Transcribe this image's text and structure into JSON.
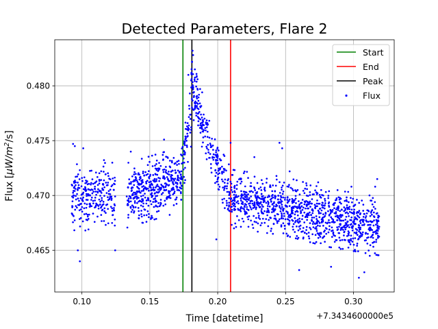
{
  "chart_data": {
    "type": "scatter",
    "title": "Detected Parameters, Flare 2",
    "xlabel": "Time [datetime]",
    "ylabel": {
      "prefix": "Flux [",
      "mu": "μ",
      "unit": "W/m",
      "sup": "2",
      "suffix": "/s]"
    },
    "x_offset_label": "+7.3434600000e5",
    "xlim": [
      0.08,
      0.33
    ],
    "ylim": [
      0.4612,
      0.4842
    ],
    "xticks": [
      0.1,
      0.15,
      0.2,
      0.25,
      0.3
    ],
    "xtick_labels": [
      "0.10",
      "0.15",
      "0.20",
      "0.25",
      "0.30"
    ],
    "yticks": [
      0.465,
      0.47,
      0.475,
      0.48
    ],
    "ytick_labels": [
      "0.465",
      "0.470",
      "0.475",
      "0.480"
    ],
    "grid": true,
    "legend_position": "top-right",
    "vertical_lines": [
      {
        "name": "Start",
        "x": 0.1744,
        "color": "#008000"
      },
      {
        "name": "End",
        "x": 0.2095,
        "color": "#ff0000"
      },
      {
        "name": "Peak",
        "x": 0.181,
        "color": "#000000"
      }
    ],
    "series": [
      {
        "name": "Flux",
        "color": "#0000ff",
        "segments": [
          {
            "x_start": 0.0925,
            "x_end": 0.1245,
            "trend": [
              [
                0.0925,
                0.4697
              ],
              [
                0.1245,
                0.4703
              ]
            ],
            "spread": 0.0022,
            "n": 260
          },
          {
            "x_start": 0.133,
            "x_end": 0.1735,
            "trend": [
              [
                0.133,
                0.47
              ],
              [
                0.1735,
                0.4715
              ]
            ],
            "spread": 0.0021,
            "n": 430
          },
          {
            "x_start": 0.1735,
            "x_end": 0.1805,
            "trend": [
              [
                0.1735,
                0.4725
              ],
              [
                0.1805,
                0.4775
              ]
            ],
            "spread": 0.0022,
            "n": 55
          },
          {
            "x_start": 0.1805,
            "x_end": 0.21,
            "trend": [
              [
                0.1805,
                0.48
              ],
              [
                0.185,
                0.4785
              ],
              [
                0.195,
                0.474
              ],
              [
                0.203,
                0.4715
              ],
              [
                0.21,
                0.47
              ]
            ],
            "spread": 0.0018,
            "n": 230
          },
          {
            "x_start": 0.21,
            "x_end": 0.319,
            "trend": [
              [
                0.21,
                0.4697
              ],
              [
                0.25,
                0.469
              ],
              [
                0.28,
                0.468
              ],
              [
                0.319,
                0.4672
              ]
            ],
            "spread": 0.0019,
            "n": 1050
          }
        ],
        "points": [
          {
            "x": 0.1815,
            "y": 0.4832
          },
          {
            "x": 0.1819,
            "y": 0.4828
          },
          {
            "x": 0.1811,
            "y": 0.4822
          },
          {
            "x": 0.1784,
            "y": 0.481
          },
          {
            "x": 0.1832,
            "y": 0.4815
          },
          {
            "x": 0.1852,
            "y": 0.4806
          },
          {
            "x": 0.1795,
            "y": 0.4793
          },
          {
            "x": 0.1808,
            "y": 0.4812
          },
          {
            "x": 0.178,
            "y": 0.476
          },
          {
            "x": 0.0935,
            "y": 0.4747
          },
          {
            "x": 0.0948,
            "y": 0.4745
          },
          {
            "x": 0.101,
            "y": 0.4743
          },
          {
            "x": 0.0985,
            "y": 0.464
          },
          {
            "x": 0.097,
            "y": 0.465
          },
          {
            "x": 0.1245,
            "y": 0.465
          },
          {
            "x": 0.1605,
            "y": 0.4751
          },
          {
            "x": 0.136,
            "y": 0.474
          },
          {
            "x": 0.199,
            "y": 0.466
          },
          {
            "x": 0.2455,
            "y": 0.4748
          },
          {
            "x": 0.2475,
            "y": 0.4743
          },
          {
            "x": 0.2095,
            "y": 0.4748
          },
          {
            "x": 0.2005,
            "y": 0.471
          },
          {
            "x": 0.304,
            "y": 0.4625
          },
          {
            "x": 0.308,
            "y": 0.463
          },
          {
            "x": 0.316,
            "y": 0.4708
          },
          {
            "x": 0.3175,
            "y": 0.4715
          },
          {
            "x": 0.2985,
            "y": 0.4708
          },
          {
            "x": 0.274,
            "y": 0.4712
          },
          {
            "x": 0.26,
            "y": 0.4632
          },
          {
            "x": 0.2835,
            "y": 0.4635
          },
          {
            "x": 0.312,
            "y": 0.4645
          },
          {
            "x": 0.227,
            "y": 0.4735
          },
          {
            "x": 0.253,
            "y": 0.4722
          }
        ]
      }
    ]
  }
}
